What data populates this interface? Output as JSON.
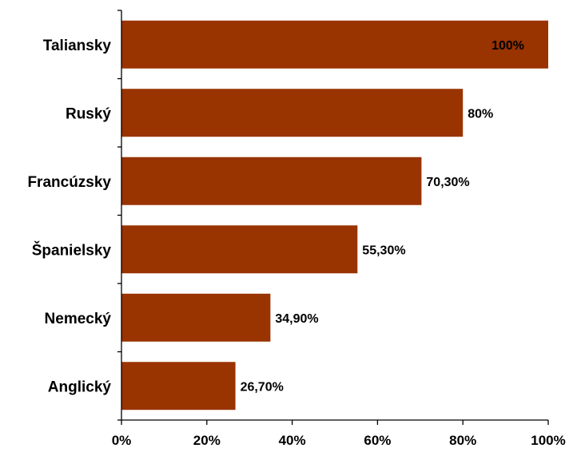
{
  "chart_data": {
    "type": "bar",
    "orientation": "horizontal",
    "categories": [
      "Taliansky",
      "Ruský",
      "Francúzsky",
      "Španielsky",
      "Nemecký",
      "Anglický"
    ],
    "values": [
      100,
      80,
      70.3,
      55.3,
      34.9,
      26.7
    ],
    "data_labels": [
      "100%",
      "80%",
      "70,30%",
      "55,30%",
      "34,90%",
      "26,70%"
    ],
    "x_ticks": [
      "0%",
      "20%",
      "40%",
      "60%",
      "80%",
      "100%"
    ],
    "xlim": [
      0,
      100
    ],
    "bar_color": "#993300",
    "grid": false,
    "title": "",
    "xlabel": "",
    "ylabel": ""
  }
}
